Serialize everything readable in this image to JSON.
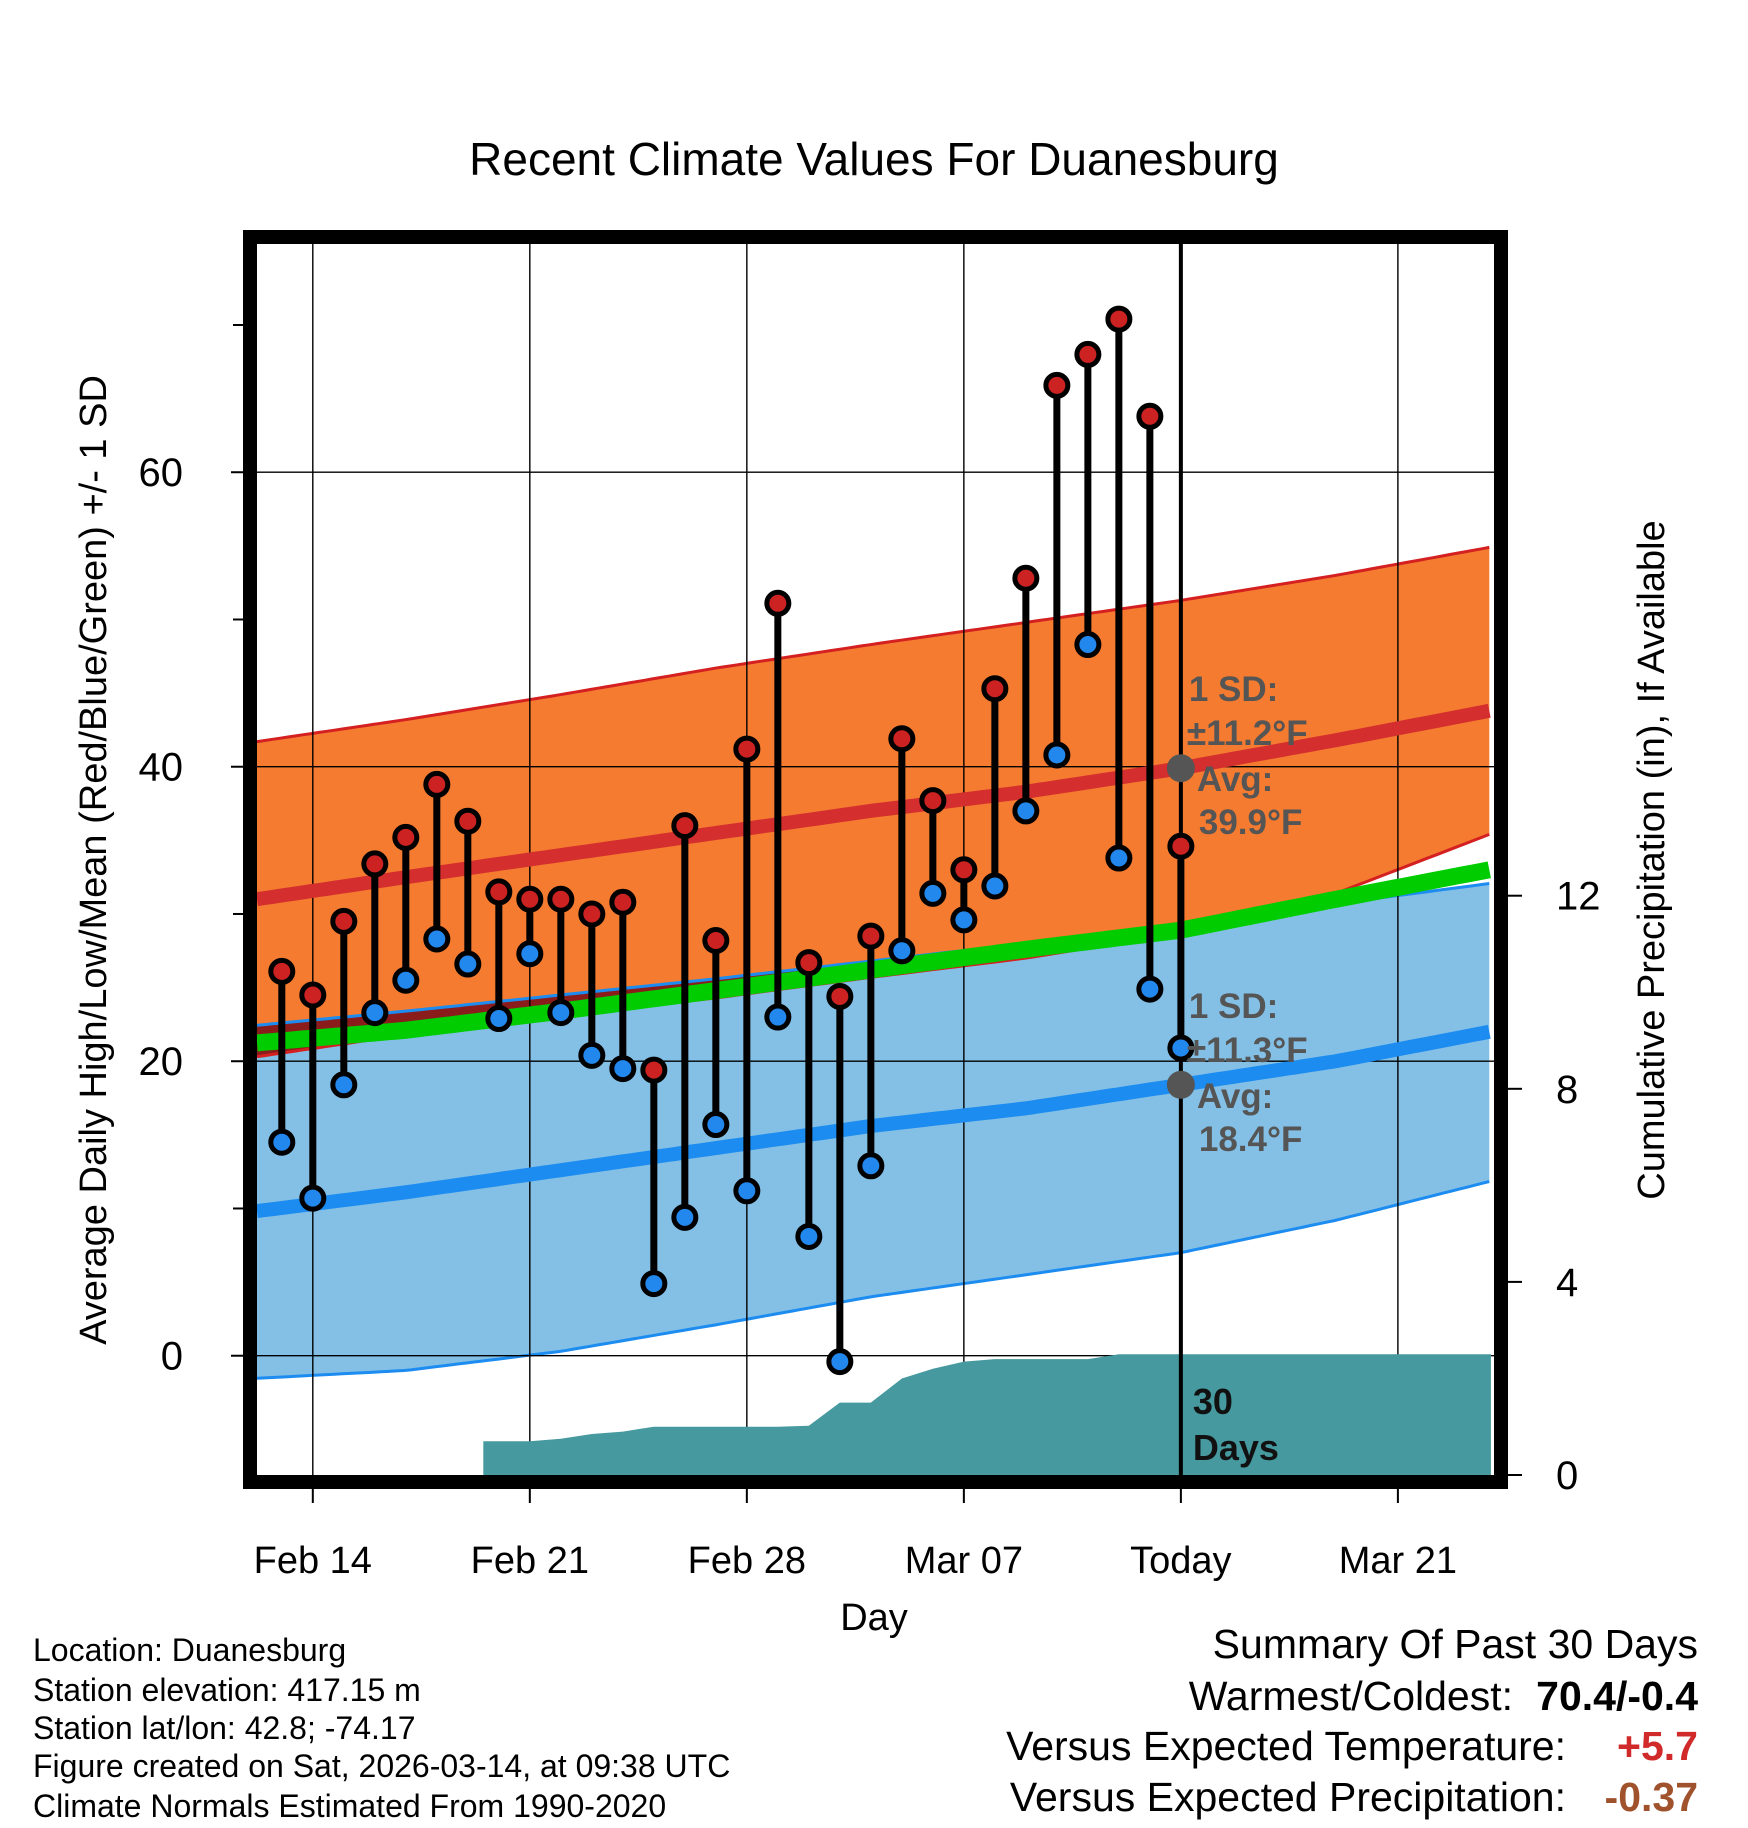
{
  "chart_data": {
    "type": "line",
    "title": "Recent Climate Values For Duanesburg",
    "xlabel": "Day",
    "ylabel": "Average Daily High/Low/Mean (Red/Blue/Green) +/- 1 SD",
    "y2label": "Cumulative Precipitation (in), If Available",
    "x_range_days": [
      -29.8,
      10.1
    ],
    "ylim": [
      -8.1,
      75.5
    ],
    "y2lim": [
      0,
      25.5
    ],
    "y_ticks": [
      0,
      20,
      40,
      60
    ],
    "y_minor_ticks": [
      -10,
      10,
      30,
      50,
      70
    ],
    "y2_ticks": [
      0,
      4,
      8,
      12
    ],
    "x_ticks": [
      {
        "day": -28,
        "label": "Feb 14"
      },
      {
        "day": -21,
        "label": "Feb 21"
      },
      {
        "day": -14,
        "label": "Feb 28"
      },
      {
        "day": -7,
        "label": "Mar 07"
      },
      {
        "day": 0,
        "label": "Today"
      },
      {
        "day": 7,
        "label": "Mar 21"
      }
    ],
    "normals": {
      "days": [
        -29.5,
        -25,
        -20,
        -15,
        -10,
        -5,
        0,
        5,
        9.7
      ],
      "high_mean": [
        31.1,
        32.5,
        34.0,
        35.5,
        37.0,
        38.3,
        39.9,
        41.8,
        43.7
      ],
      "high_upper": [
        41.8,
        43.2,
        44.9,
        46.7,
        48.3,
        49.8,
        51.3,
        53.0,
        54.8
      ],
      "high_lower": [
        20.4,
        21.8,
        23.1,
        24.3,
        25.7,
        27.0,
        28.7,
        31.4,
        35.2
      ],
      "low_mean": [
        9.9,
        11.1,
        12.6,
        14.1,
        15.6,
        16.8,
        18.4,
        20.0,
        21.9
      ],
      "low_upper": [
        22.5,
        23.4,
        24.5,
        25.6,
        26.8,
        28.0,
        29.2,
        30.7,
        32.0
      ],
      "low_lower": [
        -1.5,
        -1.0,
        0.3,
        2.1,
        4.0,
        5.5,
        7.0,
        9.2,
        11.7
      ],
      "mean": [
        21.3,
        22.1,
        23.4,
        24.8,
        26.2,
        27.6,
        28.9,
        31.0,
        32.9
      ]
    },
    "series": [
      {
        "name": "High",
        "color": "#cc2222",
        "values": [
          26.1,
          24.5,
          29.5,
          33.4,
          35.2,
          38.8,
          36.3,
          31.5,
          31.0,
          31.0,
          30.0,
          30.8,
          19.4,
          36.0,
          28.2,
          41.2,
          51.1,
          26.7,
          24.4,
          28.5,
          41.9,
          37.7,
          33.0,
          45.3,
          52.8,
          65.9,
          68.0,
          70.4,
          63.8,
          34.6
        ]
      },
      {
        "name": "Low",
        "color": "#2288ee",
        "values": [
          14.5,
          10.7,
          18.4,
          23.3,
          25.5,
          28.3,
          26.6,
          22.9,
          27.3,
          23.3,
          20.4,
          19.5,
          4.9,
          9.4,
          15.7,
          11.2,
          23.0,
          8.1,
          -0.4,
          12.9,
          27.5,
          31.4,
          29.6,
          31.9,
          37.0,
          40.8,
          48.3,
          33.8,
          24.9,
          20.9
        ]
      }
    ],
    "obs_days": [
      -29,
      -28,
      -27,
      -26,
      -25,
      -24,
      -23,
      -22,
      -21,
      -20,
      -19,
      -18,
      -17,
      -16,
      -15,
      -14,
      -13,
      -12,
      -11,
      -10,
      -9,
      -8,
      -7,
      -6,
      -5,
      -4,
      -3,
      -2,
      -1,
      0
    ],
    "precip": {
      "days": [
        -22.5,
        -22.5,
        -21.6,
        -21,
        -20,
        -19,
        -18,
        -17,
        -16,
        -15,
        -14,
        -13,
        -12,
        -11,
        -10,
        -9,
        -8,
        -7,
        -6,
        -5,
        -4,
        -3,
        -2,
        -1,
        0,
        10
      ],
      "values": [
        0,
        0.7,
        0.7,
        0.7,
        0.75,
        0.85,
        0.9,
        1.0,
        1.0,
        1.0,
        1.0,
        1.0,
        1.02,
        1.5,
        1.5,
        2.0,
        2.2,
        2.35,
        2.4,
        2.4,
        2.4,
        2.4,
        2.5,
        2.5,
        2.5,
        2.5
      ]
    },
    "annotations": {
      "high_sd_label": "1 SD:",
      "high_sd_value": "±11.2°F",
      "high_avg_label": "Avg:",
      "high_avg_value": "39.9°F",
      "high_avg": 39.9,
      "low_sd_label": "1 SD:",
      "low_sd_value": "±11.3°F",
      "low_avg_label": "Avg:",
      "low_avg_value": "18.4°F",
      "low_avg": 18.4,
      "days_label_1": "30",
      "days_label_2": "Days"
    }
  },
  "colors": {
    "high_band": "#f47b30",
    "high_line": "#d42e2e",
    "low_band": "#84c0e6",
    "low_line": "#1c8cf0",
    "mean_line": "#00cc00",
    "precip": "#46999f",
    "high_dot": "#cc2222",
    "low_dot": "#2288ee",
    "warm": "#d02a2a",
    "precip_text": "#a0522d"
  },
  "footer": {
    "location": "Location: Duanesburg",
    "elevation": "Station elevation: 417.15 m",
    "latlon": "Station lat/lon: 42.8; -74.17",
    "created": "Figure created on Sat, 2026-03-14, at 09:38 UTC",
    "normals": "Climate Normals Estimated From 1990-2020"
  },
  "summary": {
    "title": "Summary Of Past 30 Days",
    "warmest_label": "Warmest/Coldest:",
    "warmest_value": "70.4/-0.4",
    "temp_label": "Versus Expected Temperature:",
    "temp_value": "+5.7",
    "precip_label": "Versus Expected Precipitation:",
    "precip_value": "-0.37"
  }
}
